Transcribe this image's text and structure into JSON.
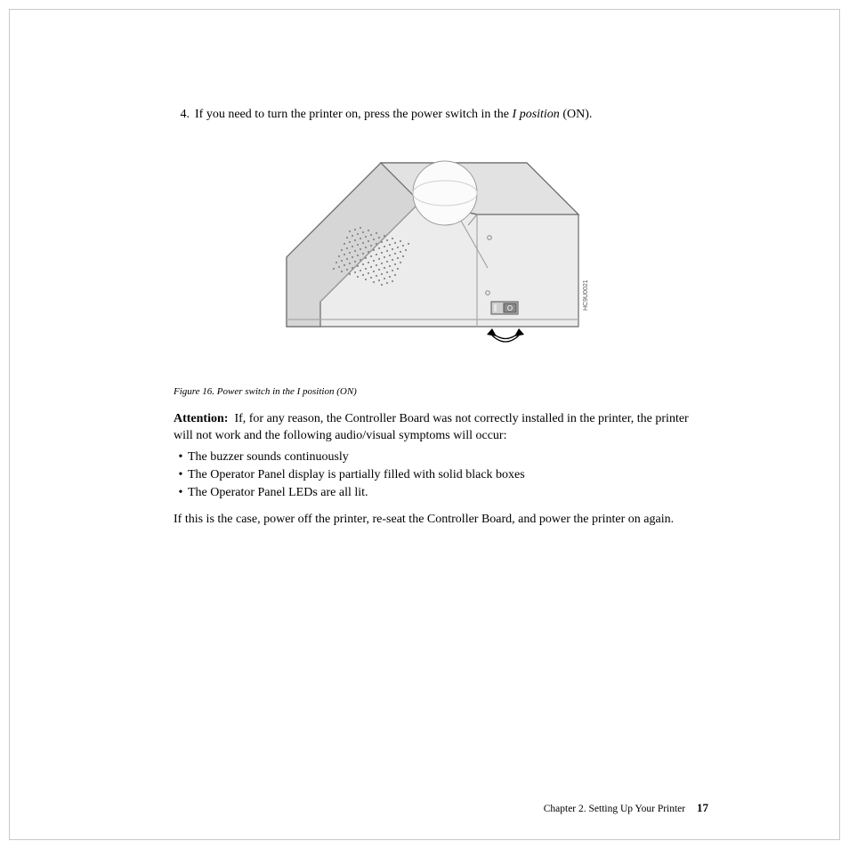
{
  "step": {
    "number": "4.",
    "text_before": "If you need to turn the printer on, press the power switch in the ",
    "italic_text": "I position",
    "text_after": " (ON)."
  },
  "figure": {
    "caption": "Figure 16. Power switch in the I position (ON)",
    "id_label": "HC9U0021",
    "switch_label": "O",
    "colors": {
      "fill_light": "#ececec",
      "fill_medium": "#e2e2e2",
      "fill_dark": "#d6d6d6",
      "stroke": "#6a6a6a",
      "dot": "#888888",
      "switch_body": "#cfcfcf",
      "switch_btn": "#8a8888"
    }
  },
  "attention": {
    "label": "Attention:",
    "text": "If, for any reason, the Controller Board was not correctly installed in the printer, the printer will not work and the following audio/visual symptoms will occur:"
  },
  "symptoms": [
    "The buzzer sounds continuously",
    "The Operator Panel display is partially filled with solid black boxes",
    "The Operator Panel LEDs are all lit."
  ],
  "closing": "If this is the case, power off the printer, re-seat the Controller Board, and power the printer on again.",
  "footer": {
    "chapter": "Chapter 2. Setting Up Your Printer",
    "page": "17"
  }
}
